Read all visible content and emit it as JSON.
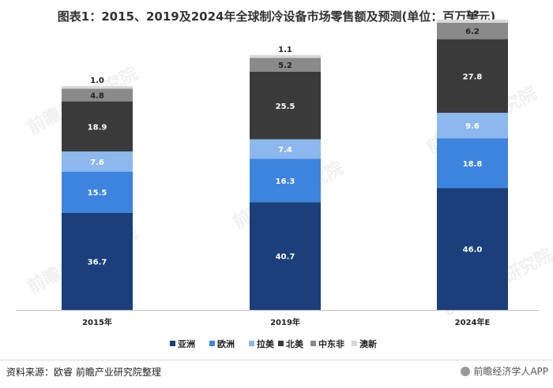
{
  "title": "图表1：2015、2019及2024年全球制冷设备市场零售额及预测(单位：百万美元)",
  "source": "资料来源：欧睿 前瞻产业研究院整理",
  "app_badge": "前瞻经济学人APP",
  "watermark": "前瞻产业研究院",
  "chart_data": {
    "type": "bar",
    "stacked": true,
    "categories": [
      "2015年",
      "2019年",
      "2024年E"
    ],
    "series": [
      {
        "name": "亚洲",
        "color": "#1a3f7a",
        "values": [
          36.7,
          40.7,
          46.0
        ]
      },
      {
        "name": "欧洲",
        "color": "#3d84de",
        "values": [
          15.5,
          16.3,
          18.8
        ]
      },
      {
        "name": "拉美",
        "color": "#8cb8ee",
        "values": [
          7.6,
          7.4,
          9.6
        ]
      },
      {
        "name": "北美",
        "color": "#3a3a3a",
        "values": [
          18.9,
          25.5,
          27.8
        ]
      },
      {
        "name": "中东非",
        "color": "#8a8a8a",
        "values": [
          4.8,
          5.2,
          6.2
        ]
      },
      {
        "name": "澳新",
        "color": "#d9d9d9",
        "values": [
          1.0,
          1.1,
          1.2
        ]
      }
    ],
    "legend_position": "bottom",
    "grid": false
  }
}
